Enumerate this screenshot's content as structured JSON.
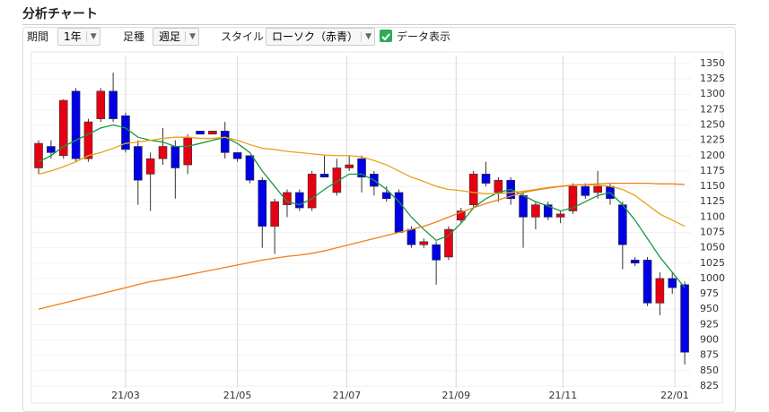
{
  "header": {
    "title": "分析チャート"
  },
  "toolbar": {
    "period_label": "期間",
    "period": "1年",
    "bar_label": "足種",
    "bar": "週足",
    "style_label": "スタイル",
    "style": "ローソク（赤青）",
    "data_toggle": "データ表示"
  },
  "chart_data": {
    "type": "candlestick",
    "open": [
      1180,
      1215,
      1200,
      1305,
      1195,
      1260,
      1305,
      1265,
      1215,
      1170,
      1195,
      1215,
      1185,
      1240,
      1235,
      1240,
      1205,
      1200,
      1160,
      1085,
      1120,
      1140,
      1115,
      1170,
      1140,
      1180,
      1195,
      1170,
      1140,
      1140,
      1080,
      1055,
      1055,
      1035,
      1095,
      1120,
      1170,
      1140,
      1160,
      1135,
      1100,
      1120,
      1100,
      1110,
      1150,
      1140,
      1150,
      1120,
      1030,
      1030,
      960,
      1000,
      990
    ],
    "high": [
      1225,
      1225,
      1292,
      1310,
      1260,
      1310,
      1335,
      1270,
      1225,
      1205,
      1245,
      1225,
      1235,
      1240,
      1240,
      1255,
      1205,
      1200,
      1165,
      1130,
      1145,
      1145,
      1175,
      1200,
      1195,
      1200,
      1200,
      1175,
      1150,
      1145,
      1085,
      1065,
      1060,
      1085,
      1115,
      1175,
      1190,
      1165,
      1165,
      1140,
      1125,
      1125,
      1110,
      1155,
      1155,
      1175,
      1155,
      1125,
      1035,
      1035,
      1010,
      1010,
      995
    ],
    "low": [
      1170,
      1195,
      1195,
      1190,
      1190,
      1255,
      1255,
      1205,
      1120,
      1110,
      1185,
      1130,
      1170,
      1235,
      1235,
      1195,
      1190,
      1155,
      1050,
      1040,
      1100,
      1110,
      1110,
      1165,
      1135,
      1175,
      1140,
      1135,
      1125,
      1075,
      1050,
      1050,
      990,
      1030,
      1090,
      1115,
      1150,
      1125,
      1120,
      1050,
      1080,
      1095,
      1090,
      1105,
      1130,
      1130,
      1120,
      1015,
      1020,
      955,
      940,
      975,
      860
    ],
    "close": [
      1220,
      1205,
      1290,
      1195,
      1255,
      1305,
      1260,
      1210,
      1160,
      1195,
      1215,
      1180,
      1230,
      1235,
      1240,
      1205,
      1195,
      1160,
      1085,
      1125,
      1140,
      1115,
      1170,
      1165,
      1180,
      1185,
      1165,
      1150,
      1130,
      1075,
      1055,
      1060,
      1030,
      1080,
      1110,
      1170,
      1155,
      1160,
      1130,
      1100,
      1120,
      1100,
      1105,
      1150,
      1135,
      1150,
      1130,
      1055,
      1025,
      960,
      1000,
      985,
      880
    ],
    "up_color": "#e60012",
    "down_color": "#0000e6",
    "lines": [
      {
        "color": "#1a9641",
        "values": [
          1190,
          1200,
          1215,
          1225,
          1235,
          1245,
          1250,
          1245,
          1230,
          1225,
          1222,
          1215,
          1215,
          1220,
          1225,
          1230,
          1220,
          1205,
          1175,
          1150,
          1125,
          1120,
          1130,
          1145,
          1158,
          1170,
          1170,
          1160,
          1145,
          1125,
          1100,
          1080,
          1062,
          1070,
          1090,
          1115,
          1130,
          1140,
          1145,
          1135,
          1125,
          1118,
          1110,
          1115,
          1125,
          1135,
          1140,
          1120,
          1095,
          1065,
          1035,
          1010,
          985
        ]
      },
      {
        "color": "#e8a317",
        "values": [
          1170,
          1175,
          1182,
          1190,
          1200,
          1205,
          1212,
          1220,
          1222,
          1225,
          1228,
          1230,
          1230,
          1228,
          1228,
          1230,
          1225,
          1218,
          1212,
          1210,
          1207,
          1205,
          1203,
          1201,
          1200,
          1200,
          1198,
          1192,
          1185,
          1175,
          1165,
          1158,
          1150,
          1145,
          1143,
          1140,
          1138,
          1138,
          1140,
          1142,
          1145,
          1148,
          1150,
          1152,
          1153,
          1152,
          1150,
          1145,
          1135,
          1120,
          1105,
          1095,
          1085
        ]
      },
      {
        "color": "#f07f1e",
        "values": [
          950,
          955,
          960,
          965,
          970,
          975,
          980,
          985,
          990,
          995,
          998,
          1002,
          1006,
          1010,
          1014,
          1018,
          1022,
          1026,
          1030,
          1033,
          1036,
          1038,
          1041,
          1045,
          1050,
          1055,
          1060,
          1065,
          1070,
          1075,
          1080,
          1085,
          1092,
          1100,
          1108,
          1115,
          1122,
          1128,
          1134,
          1140,
          1144,
          1147,
          1150,
          1152,
          1153,
          1154,
          1155,
          1155,
          1155,
          1155,
          1154,
          1154,
          1153
        ]
      }
    ],
    "xlim": [
      -0.58,
      52.5
    ],
    "xticks": [
      {
        "value": 7.0,
        "label": "21/03"
      },
      {
        "value": 16.0,
        "label": "21/05"
      },
      {
        "value": 24.8,
        "label": "21/07"
      },
      {
        "value": 33.6,
        "label": "21/09"
      },
      {
        "value": 42.2,
        "label": "21/11"
      },
      {
        "value": 51.2,
        "label": "22/01"
      }
    ],
    "ylim": [
      822,
      1363
    ],
    "yticks": [
      825,
      850,
      875,
      900,
      925,
      950,
      975,
      1000,
      1025,
      1050,
      1075,
      1100,
      1125,
      1150,
      1175,
      1200,
      1225,
      1250,
      1275,
      1300,
      1325,
      1350
    ],
    "grid": true
  }
}
